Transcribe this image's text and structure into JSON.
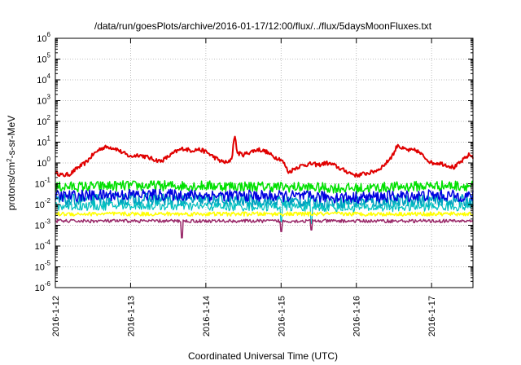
{
  "chart_data": {
    "type": "line",
    "title": "/data/run/goesPlots/archive/2016-01-17/12:00/flux/../flux/5daysMoonFluxes.txt",
    "xlabel": "Coordinated Universal Time (UTC)",
    "ylabel": "protons/cm²-s-sr-MeV",
    "ylabel_parts": {
      "base": "protons/cm",
      "sup": "2",
      "rest": "-s-sr-MeV"
    },
    "yscale": "log",
    "ylim": [
      1e-06,
      1000000.0
    ],
    "xlim": [
      0,
      5.55
    ],
    "x_unit": "days since 2016-1-12 00:00 UTC",
    "grid": true,
    "legend": "none",
    "y_ticks": [
      {
        "exp": "-6",
        "value": 1e-06
      },
      {
        "exp": "-5",
        "value": 1e-05
      },
      {
        "exp": "-4",
        "value": 0.0001
      },
      {
        "exp": "-3",
        "value": 0.001
      },
      {
        "exp": "-2",
        "value": 0.01
      },
      {
        "exp": "-1",
        "value": 0.1
      },
      {
        "exp": "0",
        "value": 1
      },
      {
        "exp": "1",
        "value": 10
      },
      {
        "exp": "2",
        "value": 100
      },
      {
        "exp": "3",
        "value": 1000
      },
      {
        "exp": "4",
        "value": 10000
      },
      {
        "exp": "5",
        "value": 100000
      },
      {
        "exp": "6",
        "value": 1000000
      }
    ],
    "x_ticks": [
      {
        "label": "2016-1-12",
        "x": 0
      },
      {
        "label": "2016-1-13",
        "x": 1
      },
      {
        "label": "2016-1-14",
        "x": 2
      },
      {
        "label": "2016-1-15",
        "x": 3
      },
      {
        "label": "2016-1-16",
        "x": 4
      },
      {
        "label": "2016-1-17",
        "x": 5
      }
    ],
    "series": [
      {
        "color": "#e00000",
        "width": 2,
        "noise": 0.1,
        "points": [
          [
            0,
            0.35
          ],
          [
            0.1,
            0.25
          ],
          [
            0.2,
            0.3
          ],
          [
            0.3,
            0.6
          ],
          [
            0.4,
            1.0
          ],
          [
            0.5,
            2.5
          ],
          [
            0.6,
            5.0
          ],
          [
            0.7,
            6.0
          ],
          [
            0.8,
            5.0
          ],
          [
            0.9,
            3.0
          ],
          [
            1.0,
            2.0
          ],
          [
            1.1,
            2.5
          ],
          [
            1.2,
            2.0
          ],
          [
            1.3,
            1.5
          ],
          [
            1.4,
            1.2
          ],
          [
            1.5,
            2.0
          ],
          [
            1.6,
            3.5
          ],
          [
            1.7,
            5.0
          ],
          [
            1.8,
            4.0
          ],
          [
            1.9,
            4.5
          ],
          [
            2.0,
            3.5
          ],
          [
            2.1,
            2.0
          ],
          [
            2.2,
            1.2
          ],
          [
            2.3,
            1.0
          ],
          [
            2.35,
            2.0
          ],
          [
            2.38,
            25.0
          ],
          [
            2.42,
            3.0
          ],
          [
            2.5,
            2.5
          ],
          [
            2.6,
            3.5
          ],
          [
            2.7,
            4.5
          ],
          [
            2.8,
            3.5
          ],
          [
            2.9,
            2.0
          ],
          [
            3.0,
            1.5
          ],
          [
            3.05,
            0.8
          ],
          [
            3.1,
            0.35
          ],
          [
            3.2,
            0.6
          ],
          [
            3.3,
            0.8
          ],
          [
            3.4,
            0.9
          ],
          [
            3.5,
            0.8
          ],
          [
            3.6,
            1.0
          ],
          [
            3.7,
            0.8
          ],
          [
            3.8,
            0.5
          ],
          [
            3.9,
            0.35
          ],
          [
            4.0,
            0.25
          ],
          [
            4.1,
            0.3
          ],
          [
            4.2,
            0.35
          ],
          [
            4.3,
            0.5
          ],
          [
            4.4,
            1.0
          ],
          [
            4.5,
            3.0
          ],
          [
            4.55,
            8.0
          ],
          [
            4.6,
            5.0
          ],
          [
            4.7,
            4.0
          ],
          [
            4.8,
            4.0
          ],
          [
            4.9,
            2.0
          ],
          [
            5.0,
            1.0
          ],
          [
            5.1,
            1.0
          ],
          [
            5.2,
            0.8
          ],
          [
            5.3,
            0.6
          ],
          [
            5.4,
            1.2
          ],
          [
            5.5,
            2.5
          ],
          [
            5.55,
            2.0
          ]
        ]
      },
      {
        "color": "#00e000",
        "width": 1.5,
        "noise": 0.25,
        "points": [
          [
            0,
            0.07
          ],
          [
            1,
            0.08
          ],
          [
            2,
            0.08
          ],
          [
            3,
            0.07
          ],
          [
            4,
            0.06
          ],
          [
            5,
            0.08
          ],
          [
            5.55,
            0.08
          ]
        ],
        "spikes": []
      },
      {
        "color": "#00a0c0",
        "width": 1.5,
        "noise": 0.3,
        "points": [
          [
            0,
            0.015
          ],
          [
            1,
            0.018
          ],
          [
            2,
            0.016
          ],
          [
            3,
            0.014
          ],
          [
            4,
            0.013
          ],
          [
            5,
            0.016
          ],
          [
            5.55,
            0.015
          ]
        ],
        "spikes": []
      },
      {
        "color": "#0000e0",
        "width": 1.5,
        "noise": 0.28,
        "points": [
          [
            0,
            0.025
          ],
          [
            1,
            0.03
          ],
          [
            2,
            0.028
          ],
          [
            3,
            0.025
          ],
          [
            4,
            0.022
          ],
          [
            5,
            0.028
          ],
          [
            5.55,
            0.025
          ]
        ],
        "spikes": []
      },
      {
        "color": "#00c0c0",
        "width": 1.2,
        "noise": 0.22,
        "points": [
          [
            0,
            0.008
          ],
          [
            1,
            0.009
          ],
          [
            2,
            0.008
          ],
          [
            3,
            0.008
          ],
          [
            4,
            0.007
          ],
          [
            5,
            0.008
          ],
          [
            5.55,
            0.008
          ]
        ],
        "spikes": [
          [
            3.0,
            0.0015
          ],
          [
            3.4,
            0.0012
          ]
        ]
      },
      {
        "color": "#ffff00",
        "width": 1.5,
        "noise": 0.1,
        "points": [
          [
            0,
            0.0035
          ],
          [
            1,
            0.0035
          ],
          [
            2,
            0.0035
          ],
          [
            3,
            0.0035
          ],
          [
            4,
            0.0035
          ],
          [
            5,
            0.0035
          ],
          [
            5.55,
            0.0035
          ]
        ],
        "spikes": []
      },
      {
        "color": "#9a2a6a",
        "width": 1.5,
        "noise": 0.08,
        "points": [
          [
            0,
            0.0016
          ],
          [
            1,
            0.0016
          ],
          [
            2,
            0.0016
          ],
          [
            3,
            0.0016
          ],
          [
            4,
            0.0016
          ],
          [
            5,
            0.0016
          ],
          [
            5.55,
            0.0016
          ]
        ],
        "spikes": [
          [
            1.68,
            0.00025
          ],
          [
            3.0,
            0.0005
          ],
          [
            3.4,
            0.0006
          ]
        ]
      }
    ]
  }
}
